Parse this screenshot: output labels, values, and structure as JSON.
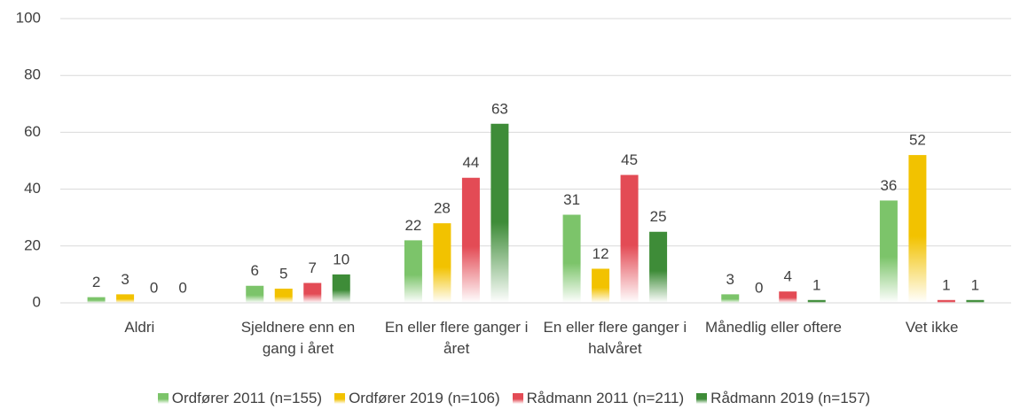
{
  "chart_data": {
    "type": "bar",
    "categories": [
      "Aldri",
      "Sjeldnere enn en gang i året",
      "En eller flere ganger i året",
      "En eller flere ganger i halvåret",
      "Månedlig eller oftere",
      "Vet ikke"
    ],
    "series": [
      {
        "name": "Ordfører 2011 (n=155)",
        "color": "#7cc46a",
        "values": [
          2,
          6,
          22,
          31,
          3,
          36
        ]
      },
      {
        "name": "Ordfører 2019 (n=106)",
        "color": "#f2c200",
        "values": [
          3,
          5,
          28,
          12,
          0,
          52
        ]
      },
      {
        "name": "Rådmann 2011 (n=211)",
        "color": "#e34b55",
        "values": [
          0,
          7,
          44,
          45,
          4,
          1
        ]
      },
      {
        "name": "Rådmann 2019 (n=157)",
        "color": "#3e8c38",
        "values": [
          0,
          10,
          63,
          25,
          1,
          1
        ]
      }
    ],
    "ylim": [
      0,
      100
    ],
    "yticks": [
      0,
      20,
      40,
      60,
      80,
      100
    ],
    "grid": true,
    "legend": "bottom"
  }
}
